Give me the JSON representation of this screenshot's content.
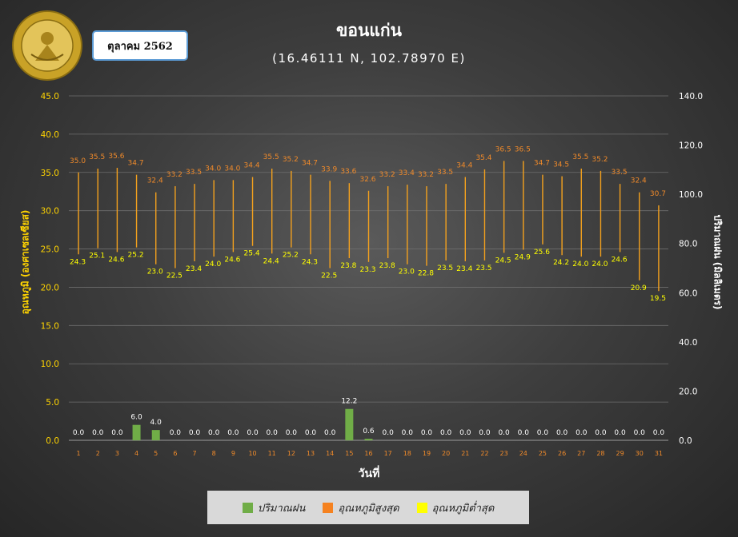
{
  "header": {
    "title": "ขอนแก่น",
    "coords": "(16.46111 N, 102.78970 E)",
    "month_label": "ตุลาคม 2562",
    "logo_text": "กรมอุตุนิยมวิทยา METEOROLOGICAL DEPARTMENT"
  },
  "colors": {
    "rain": "#70ad47",
    "tmax": "#f4a11d",
    "tmin": "#ffd400",
    "tmax_label": "#f08a2a",
    "tmin_label": "#ffff00",
    "legend_tmax": "#f58220",
    "legend_tmin": "#ffff00"
  },
  "legend": {
    "rain": "ปริมาณฝน",
    "tmax": "อุณหภูมิสูงสุด",
    "tmin": "อุณหภูมิต่ำสุด"
  },
  "chart_data": {
    "type": "bar",
    "xlabel": "วันที่",
    "ylabel_left": "อุณหภูมิ (องศาเซลเซียส)",
    "ylabel_right": "ปริมาณฝน (มิลลิเมตร)",
    "ylim_left": [
      0,
      45
    ],
    "yticks_left": [
      "0.0",
      "5.0",
      "10.0",
      "15.0",
      "20.0",
      "25.0",
      "30.0",
      "35.0",
      "40.0",
      "45.0"
    ],
    "ylim_right": [
      0,
      140
    ],
    "yticks_right": [
      "0.0",
      "20.0",
      "40.0",
      "60.0",
      "80.0",
      "100.0",
      "120.0",
      "140.0"
    ],
    "grid": true,
    "categories": [
      "1",
      "2",
      "3",
      "4",
      "5",
      "6",
      "7",
      "8",
      "9",
      "10",
      "11",
      "12",
      "13",
      "14",
      "15",
      "16",
      "17",
      "18",
      "19",
      "20",
      "21",
      "22",
      "23",
      "24",
      "25",
      "26",
      "27",
      "28",
      "29",
      "30",
      "31"
    ],
    "series": [
      {
        "name": "อุณหภูมิสูงสุด",
        "values": [
          35.0,
          35.5,
          35.6,
          34.7,
          32.4,
          33.2,
          33.5,
          34.0,
          34.0,
          34.4,
          35.5,
          35.2,
          34.7,
          33.9,
          33.6,
          32.6,
          33.2,
          33.4,
          33.2,
          33.5,
          34.4,
          35.4,
          36.5,
          36.5,
          34.7,
          34.5,
          35.5,
          35.2,
          33.5,
          32.4,
          30.7
        ],
        "labels": [
          "35.0",
          "35.5",
          "35.6",
          "34.7",
          "32.4",
          "33.2",
          "33.5",
          "34.0",
          "34.0",
          "34.4",
          "35.5",
          "35.2",
          "34.7",
          "33.9",
          "33.6",
          "32.6",
          "33.2",
          "33.4",
          "33.2",
          "33.5",
          "34.4",
          "35.4",
          "36.5",
          "36.5",
          "34.7",
          "34.5",
          "35.5",
          "35.2",
          "33.5",
          "32.4",
          "30.7"
        ]
      },
      {
        "name": "อุณหภูมิต่ำสุด",
        "values": [
          24.3,
          25.1,
          24.6,
          25.2,
          23.0,
          22.5,
          23.4,
          24.0,
          24.6,
          25.4,
          24.4,
          25.2,
          24.3,
          22.5,
          23.8,
          23.3,
          23.8,
          23.0,
          22.8,
          23.5,
          23.4,
          23.5,
          24.5,
          24.9,
          25.6,
          24.2,
          24.0,
          24.0,
          24.6,
          20.9,
          19.5
        ],
        "labels": [
          "24.3",
          "25.1",
          "24.6",
          "25.2",
          "23.0",
          "22.5",
          "23.4",
          "24.0",
          "24.6",
          "25.4",
          "24.4",
          "25.2",
          "24.3",
          "22.5",
          "23.8",
          "23.3",
          "23.8",
          "23.0",
          "22.8",
          "23.5",
          "23.4",
          "23.5",
          "24.5",
          "24.9",
          "25.6",
          "24.2",
          "24.0",
          "24.0",
          "24.6",
          "20.9",
          "19.5"
        ]
      },
      {
        "name": "ปริมาณฝน",
        "values": [
          0.0,
          0.0,
          0.0,
          6.0,
          4.0,
          0.0,
          0.0,
          0.0,
          0.0,
          0.0,
          0.0,
          0.0,
          0.0,
          0.0,
          12.2,
          0.6,
          0.0,
          0.0,
          0.0,
          0.0,
          0.0,
          0.0,
          0.0,
          0.0,
          0.0,
          0.0,
          0.0,
          0.0,
          0.0,
          0.0,
          0.0
        ],
        "labels": [
          "0.0",
          "0.0",
          "0.0",
          "6.0",
          "4.0",
          "0.0",
          "0.0",
          "0.0",
          "0.0",
          "0.0",
          "0.0",
          "0.0",
          "0.0",
          "0.0",
          "12.2",
          "0.6",
          "0.0",
          "0.0",
          "0.0",
          "0.0",
          "0.0",
          "0.0",
          "0.0",
          "0.0",
          "0.0",
          "0.0",
          "0.0",
          "0.0",
          "0.0",
          "0.0",
          "0.0"
        ]
      }
    ]
  }
}
